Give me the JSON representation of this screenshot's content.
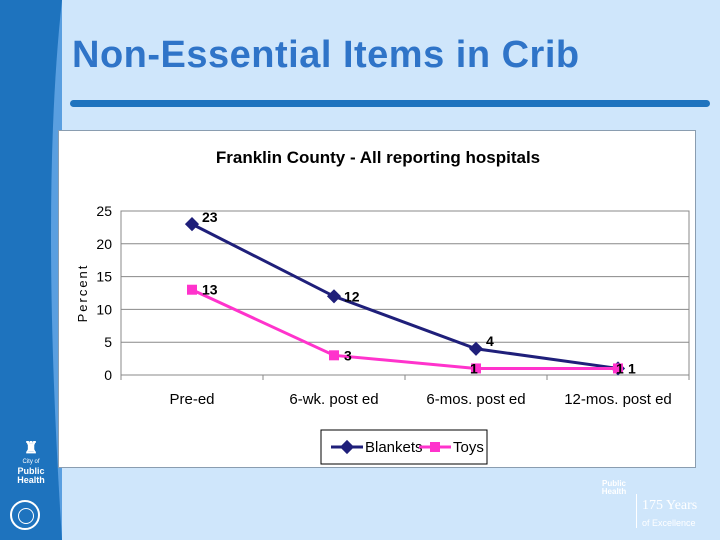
{
  "slide": {
    "title": "Non-Essential Items in Crib",
    "logo_left_lines": [
      "City of",
      "Public",
      "Health"
    ],
    "footer_logo": {
      "mark": "Public Health",
      "years": "175 Years",
      "tagline": "of Excellence"
    }
  },
  "colors": {
    "blankets": "#1f1f7a",
    "toys": "#ff33cc",
    "accent": "#1e73be",
    "title": "#2f74c8"
  },
  "chart_data": {
    "type": "line",
    "title": "Franklin County - All reporting hospitals",
    "xlabel": "",
    "ylabel": "Percent",
    "categories": [
      "Pre-ed",
      "6-wk. post ed",
      "6-mos. post ed",
      "12-mos. post ed"
    ],
    "ylim": [
      0,
      25
    ],
    "yticks": [
      0,
      5,
      10,
      15,
      20,
      25
    ],
    "grid": true,
    "legend": "bottom",
    "series": [
      {
        "name": "Blankets",
        "values": [
          23,
          12,
          4,
          1
        ],
        "marker": "diamond"
      },
      {
        "name": "Toys",
        "values": [
          13,
          3,
          1,
          1
        ],
        "marker": "square"
      }
    ]
  }
}
